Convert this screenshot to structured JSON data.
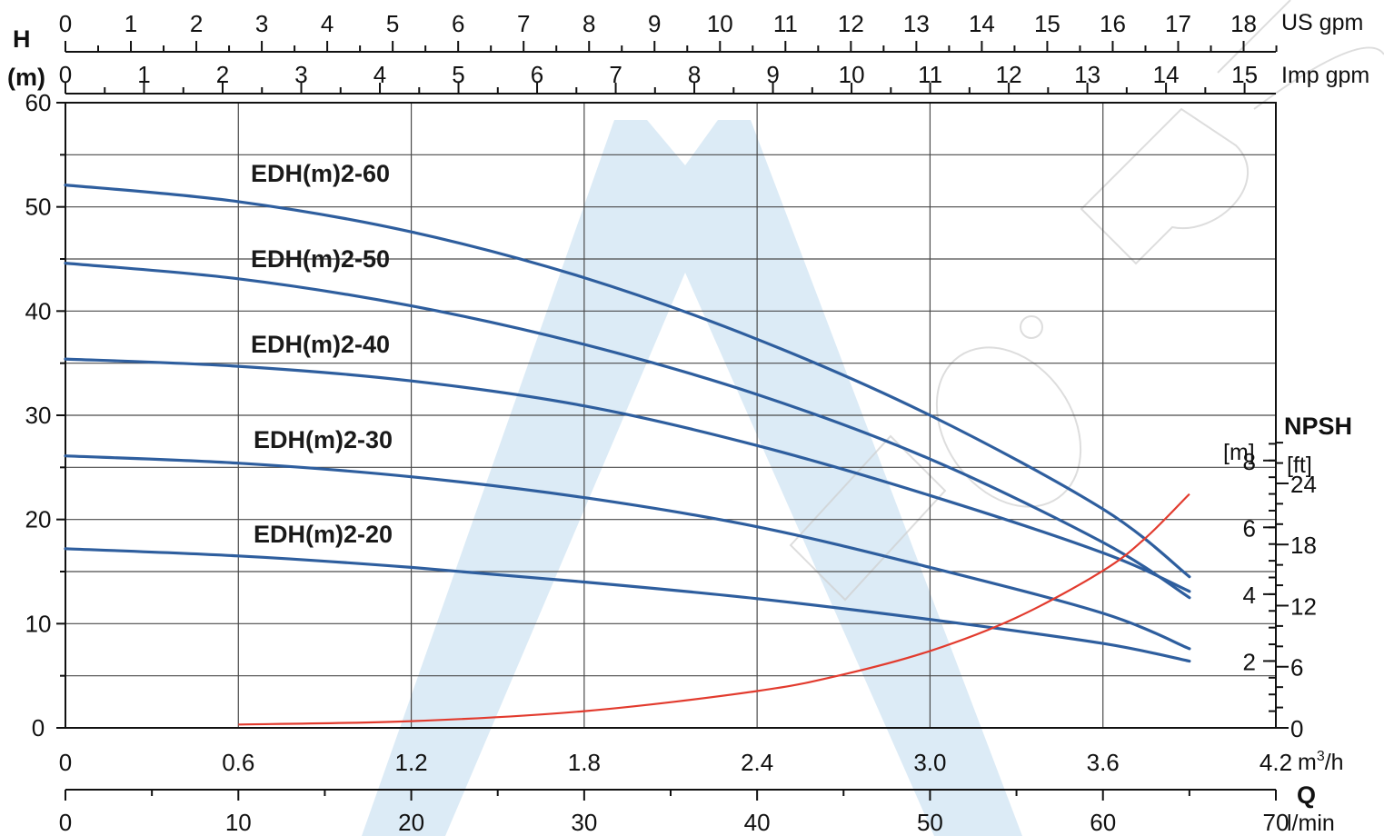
{
  "chart_data": {
    "type": "line",
    "colors": {
      "curve": "#2e5e9e",
      "npsh": "#e23b2e",
      "watermark": "#d6e8f5"
    },
    "y_axis": {
      "title_top": "H",
      "title_bottom": "(m)",
      "range": [
        0,
        60
      ],
      "ticks": [
        0,
        10,
        20,
        30,
        40,
        50,
        60
      ]
    },
    "x_axis_primary": {
      "unit": "m³/h",
      "unit_base": "m",
      "unit_sup": "3",
      "unit_tail": "/h",
      "range": [
        0,
        4.2
      ],
      "ticks": [
        0,
        0.6,
        1.2,
        1.8,
        2.4,
        3.0,
        3.6,
        4.2
      ],
      "tick_labels": [
        "0",
        "0.6",
        "1.2",
        "1.8",
        "2.4",
        "3.0",
        "3.6",
        "4.2"
      ]
    },
    "x_axis_lmin": {
      "title": "Q",
      "unit": "l/min",
      "range": [
        0,
        70
      ],
      "ticks": [
        0,
        10,
        20,
        30,
        40,
        50,
        60,
        70
      ],
      "tick_labels": [
        "0",
        "10",
        "20",
        "30",
        "40",
        "50",
        "60",
        "70"
      ]
    },
    "x_axis_usgpm": {
      "unit": "US gpm",
      "ticks": [
        0,
        1,
        2,
        3,
        4,
        5,
        6,
        7,
        8,
        9,
        10,
        11,
        12,
        13,
        14,
        15,
        16,
        17,
        18
      ],
      "tick_labels": [
        "0",
        "1",
        "2",
        "3",
        "4",
        "5",
        "6",
        "7",
        "8",
        "9",
        "10",
        "11",
        "12",
        "13",
        "14",
        "15",
        "16",
        "17",
        "18"
      ]
    },
    "x_axis_impgpm": {
      "unit": "Imp gpm",
      "ticks": [
        0,
        1,
        2,
        3,
        4,
        5,
        6,
        7,
        8,
        9,
        10,
        11,
        12,
        13,
        14,
        15
      ],
      "tick_labels": [
        "0",
        "1",
        "2",
        "3",
        "4",
        "5",
        "6",
        "7",
        "8",
        "9",
        "10",
        "11",
        "12",
        "13",
        "14",
        "15"
      ]
    },
    "npsh_axis": {
      "title": "NPSH",
      "unit_m": "[m]",
      "unit_ft": "[ft]",
      "range_m": [
        0,
        9
      ],
      "ticks_m": [
        2,
        4,
        6,
        8
      ],
      "ticks_ft": [
        0,
        6,
        12,
        18,
        24
      ]
    },
    "series": [
      {
        "name": "EDH(m)2-60",
        "x": [
          0,
          0.6,
          1.2,
          1.8,
          2.4,
          3.0,
          3.6,
          3.9
        ],
        "y": [
          52.1,
          50.5,
          47.6,
          43.2,
          37.3,
          30.0,
          21.0,
          14.5
        ]
      },
      {
        "name": "EDH(m)2-50",
        "x": [
          0,
          0.6,
          1.2,
          1.8,
          2.4,
          3.0,
          3.6,
          3.9
        ],
        "y": [
          44.6,
          43.1,
          40.5,
          36.8,
          32.0,
          25.8,
          17.8,
          12.5
        ]
      },
      {
        "name": "EDH(m)2-40",
        "x": [
          0,
          0.6,
          1.2,
          1.8,
          2.4,
          3.0,
          3.6,
          3.9
        ],
        "y": [
          35.4,
          34.7,
          33.3,
          30.9,
          27.1,
          22.3,
          16.8,
          13.1
        ]
      },
      {
        "name": "EDH(m)2-30",
        "x": [
          0,
          0.6,
          1.2,
          1.8,
          2.4,
          3.0,
          3.6,
          3.9
        ],
        "y": [
          26.1,
          25.4,
          24.1,
          22.1,
          19.3,
          15.4,
          11.0,
          7.6
        ]
      },
      {
        "name": "EDH(m)2-20",
        "x": [
          0,
          0.6,
          1.2,
          1.8,
          2.4,
          3.0,
          3.6,
          3.9
        ],
        "y": [
          17.2,
          16.5,
          15.4,
          14.0,
          12.4,
          10.4,
          8.1,
          6.4
        ]
      }
    ],
    "npsh_curve": {
      "x": [
        0.6,
        1.2,
        1.8,
        2.4,
        2.7,
        3.0,
        3.3,
        3.6,
        3.75,
        3.9
      ],
      "y": [
        0.1,
        0.2,
        0.5,
        1.1,
        1.6,
        2.3,
        3.3,
        4.7,
        5.7,
        7.0
      ]
    }
  }
}
